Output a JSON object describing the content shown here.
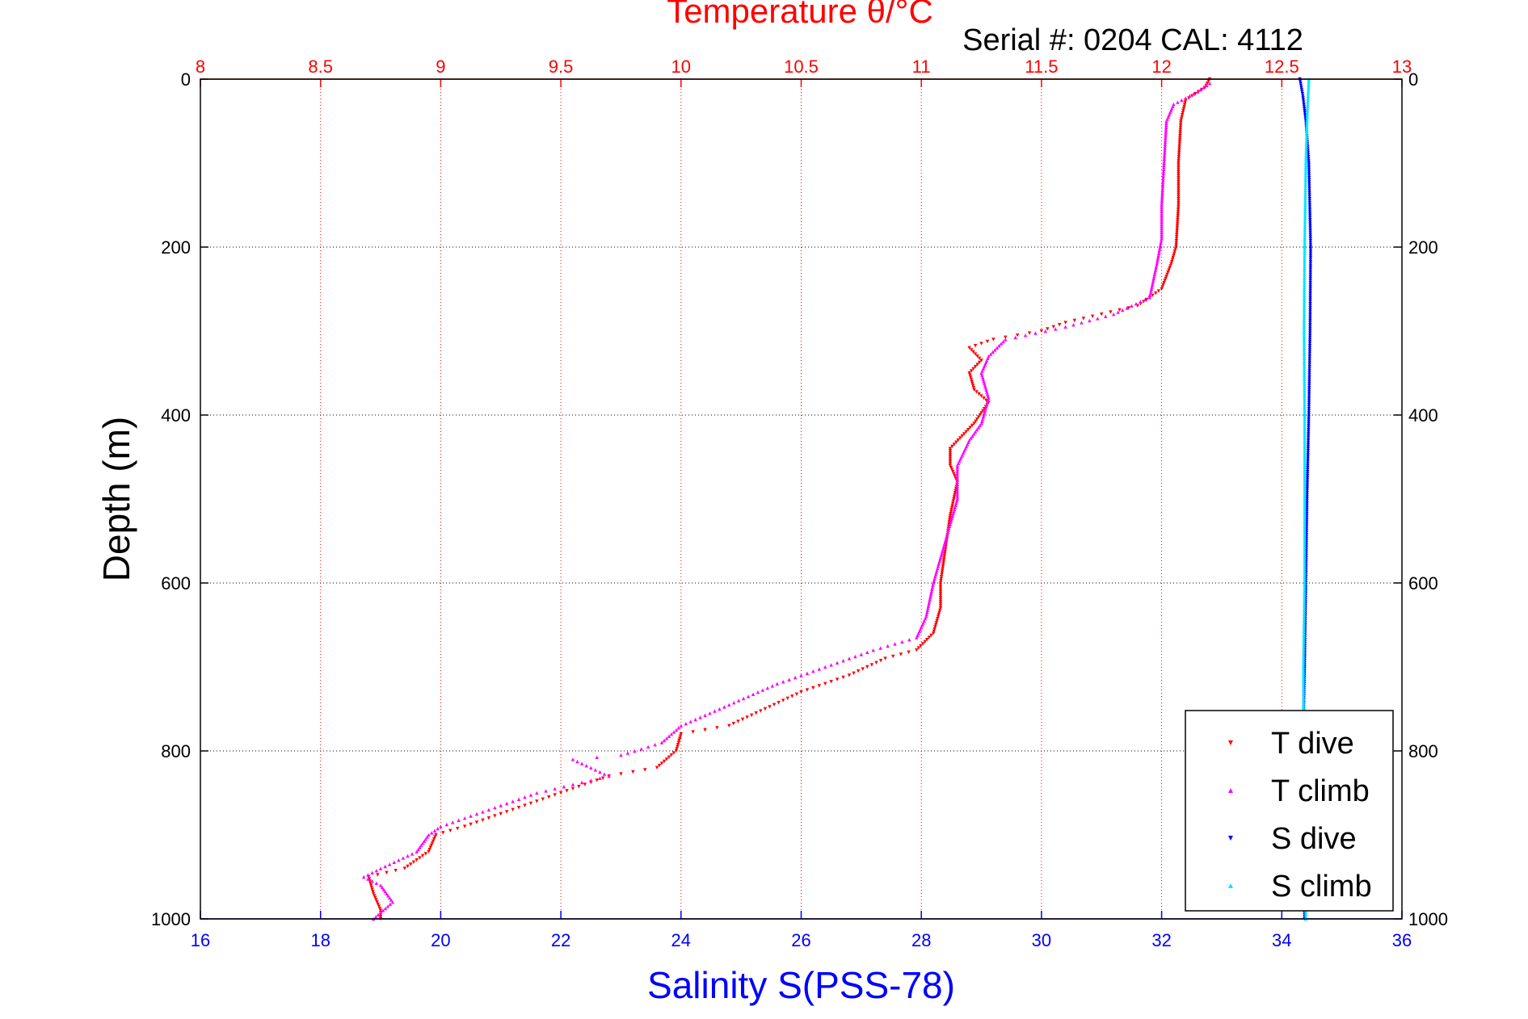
{
  "chart_data": {
    "type": "scatter",
    "title": "Temperature θ/°C",
    "subtitle": "Serial #: 0204  CAL: 4112",
    "ylabel": "Depth (m)",
    "xlabel_bottom": "Salinity S(PSS-78)",
    "xlabel_top": "Temperature θ/°C",
    "y_reversed": true,
    "ylim": [
      0,
      1000
    ],
    "yticks": [
      "0",
      "200",
      "400",
      "600",
      "800",
      "1000"
    ],
    "xlim_bottom": [
      16,
      36
    ],
    "xticks_bottom": [
      "16",
      "18",
      "20",
      "22",
      "24",
      "26",
      "28",
      "30",
      "32",
      "34",
      "36"
    ],
    "xlim_top": [
      8,
      13
    ],
    "xticks_top": [
      "8",
      "8.5",
      "9",
      "9.5",
      "10",
      "10.5",
      "11",
      "11.5",
      "12",
      "12.5",
      "13"
    ],
    "grid": true,
    "legend_position": "bottom-right",
    "colors": {
      "temperature_axis": "#ff0000",
      "salinity_axis": "#0000ff",
      "t_dive": "#ff0000",
      "t_climb": "#ff00ff",
      "s_dive": "#0000ff",
      "s_climb": "#00e5ff"
    },
    "series": [
      {
        "name": "T dive",
        "axis": "top",
        "marker": "triangle-down",
        "points": [
          [
            12.2,
            0
          ],
          [
            12.18,
            10
          ],
          [
            12.1,
            25
          ],
          [
            12.08,
            50
          ],
          [
            12.07,
            100
          ],
          [
            12.07,
            150
          ],
          [
            12.06,
            200
          ],
          [
            12.04,
            220
          ],
          [
            12.0,
            250
          ],
          [
            11.9,
            270
          ],
          [
            11.6,
            290
          ],
          [
            11.5,
            300
          ],
          [
            11.3,
            310
          ],
          [
            11.2,
            320
          ],
          [
            11.25,
            335
          ],
          [
            11.2,
            350
          ],
          [
            11.22,
            370
          ],
          [
            11.28,
            385
          ],
          [
            11.22,
            410
          ],
          [
            11.12,
            440
          ],
          [
            11.12,
            460
          ],
          [
            11.15,
            480
          ],
          [
            11.12,
            520
          ],
          [
            11.1,
            560
          ],
          [
            11.08,
            600
          ],
          [
            11.08,
            630
          ],
          [
            11.05,
            660
          ],
          [
            10.98,
            680
          ],
          [
            10.85,
            690
          ],
          [
            10.7,
            710
          ],
          [
            10.5,
            730
          ],
          [
            10.35,
            750
          ],
          [
            10.2,
            770
          ],
          [
            10.0,
            780
          ],
          [
            9.98,
            800
          ],
          [
            9.9,
            820
          ],
          [
            9.7,
            830
          ],
          [
            9.5,
            850
          ],
          [
            9.3,
            870
          ],
          [
            9.1,
            890
          ],
          [
            8.98,
            900
          ],
          [
            8.95,
            920
          ],
          [
            8.85,
            940
          ],
          [
            8.7,
            950
          ],
          [
            8.72,
            970
          ],
          [
            8.75,
            990
          ],
          [
            8.75,
            1000
          ]
        ]
      },
      {
        "name": "T climb",
        "axis": "top",
        "marker": "triangle-up",
        "points": [
          [
            12.2,
            5
          ],
          [
            12.15,
            15
          ],
          [
            12.05,
            30
          ],
          [
            12.02,
            50
          ],
          [
            12.01,
            100
          ],
          [
            12.0,
            150
          ],
          [
            12.0,
            190
          ],
          [
            11.98,
            220
          ],
          [
            11.95,
            260
          ],
          [
            11.8,
            280
          ],
          [
            11.6,
            295
          ],
          [
            11.35,
            310
          ],
          [
            11.28,
            330
          ],
          [
            11.25,
            350
          ],
          [
            11.28,
            380
          ],
          [
            11.25,
            410
          ],
          [
            11.2,
            430
          ],
          [
            11.15,
            460
          ],
          [
            11.15,
            500
          ],
          [
            11.1,
            550
          ],
          [
            11.05,
            600
          ],
          [
            11.02,
            640
          ],
          [
            10.98,
            665
          ],
          [
            10.8,
            680
          ],
          [
            10.6,
            700
          ],
          [
            10.4,
            720
          ],
          [
            10.2,
            745
          ],
          [
            10.0,
            770
          ],
          [
            9.92,
            790
          ],
          [
            9.75,
            805
          ],
          [
            9.55,
            810
          ],
          [
            9.7,
            830
          ],
          [
            9.4,
            850
          ],
          [
            9.2,
            870
          ],
          [
            9.0,
            890
          ],
          [
            8.95,
            900
          ],
          [
            8.9,
            920
          ],
          [
            8.75,
            940
          ],
          [
            8.68,
            950
          ],
          [
            8.75,
            960
          ],
          [
            8.8,
            980
          ],
          [
            8.72,
            1000
          ]
        ]
      },
      {
        "name": "S dive",
        "axis": "bottom",
        "marker": "triangle-down",
        "points": [
          [
            34.3,
            0
          ],
          [
            34.35,
            20
          ],
          [
            34.4,
            50
          ],
          [
            34.45,
            100
          ],
          [
            34.48,
            200
          ],
          [
            34.47,
            300
          ],
          [
            34.45,
            400
          ],
          [
            34.42,
            500
          ],
          [
            34.4,
            600
          ],
          [
            34.38,
            700
          ],
          [
            34.35,
            800
          ],
          [
            34.35,
            900
          ],
          [
            34.38,
            1000
          ]
        ]
      },
      {
        "name": "S climb",
        "axis": "bottom",
        "marker": "triangle-up",
        "points": [
          [
            34.45,
            0
          ],
          [
            34.42,
            50
          ],
          [
            34.4,
            100
          ],
          [
            34.38,
            200
          ],
          [
            34.37,
            300
          ],
          [
            34.38,
            400
          ],
          [
            34.38,
            500
          ],
          [
            34.38,
            600
          ],
          [
            34.36,
            700
          ],
          [
            34.36,
            800
          ],
          [
            34.37,
            900
          ],
          [
            34.4,
            1000
          ]
        ]
      }
    ]
  }
}
